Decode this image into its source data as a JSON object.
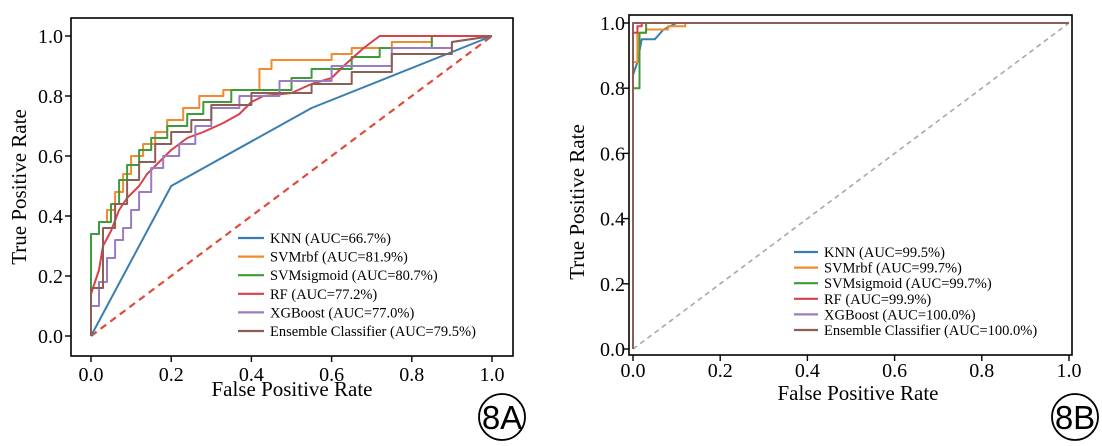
{
  "colors": {
    "knn": "#3a7eb0",
    "svmrbf": "#f28a2e",
    "svmsigmoid": "#3f9a3a",
    "rf": "#d8404a",
    "xgboost": "#9a7cc0",
    "ensemble": "#8c5e56",
    "diag_a": "#e04a3a",
    "diag_b": "#a8a8a8"
  },
  "chart_data": [
    {
      "type": "line",
      "badge": "8A",
      "xlabel": "False Positive Rate",
      "ylabel": "True Positive Rate",
      "xlim": [
        0,
        1
      ],
      "ylim": [
        0,
        1
      ],
      "xticks": [
        "0.0",
        "0.2",
        "0.4",
        "0.6",
        "0.8",
        "1.0"
      ],
      "yticks": [
        "0.0",
        "0.2",
        "0.4",
        "0.6",
        "0.8",
        "1.0"
      ],
      "grid": false,
      "legend_position": "bottom-right",
      "diagonal": "red-dashed",
      "series": [
        {
          "name": "KNN (AUC=66.7%)",
          "key": "knn",
          "x": [
            0,
            0.2,
            0.55,
            1.0
          ],
          "y": [
            0,
            0.5,
            0.76,
            1.0
          ]
        },
        {
          "name": "SVMrbf (AUC=81.9%)",
          "key": "svmrbf",
          "x": [
            0,
            0,
            0.02,
            0.02,
            0.04,
            0.04,
            0.06,
            0.06,
            0.08,
            0.08,
            0.1,
            0.1,
            0.13,
            0.13,
            0.16,
            0.16,
            0.19,
            0.19,
            0.23,
            0.23,
            0.27,
            0.27,
            0.33,
            0.33,
            0.42,
            0.42,
            0.45,
            0.45,
            0.6,
            0.6,
            0.65,
            0.65,
            0.75,
            0.75,
            0.85,
            0.85,
            1.0
          ],
          "y": [
            0,
            0.34,
            0.34,
            0.38,
            0.38,
            0.42,
            0.42,
            0.48,
            0.48,
            0.54,
            0.54,
            0.6,
            0.6,
            0.64,
            0.64,
            0.68,
            0.68,
            0.72,
            0.72,
            0.76,
            0.76,
            0.8,
            0.8,
            0.82,
            0.82,
            0.89,
            0.89,
            0.92,
            0.92,
            0.94,
            0.94,
            0.96,
            0.96,
            0.98,
            0.98,
            1.0,
            1.0
          ]
        },
        {
          "name": "SVMsigmoid (AUC=80.7%)",
          "key": "svmsigmoid",
          "x": [
            0,
            0,
            0.02,
            0.02,
            0.05,
            0.05,
            0.07,
            0.07,
            0.09,
            0.09,
            0.12,
            0.12,
            0.15,
            0.15,
            0.19,
            0.19,
            0.24,
            0.24,
            0.28,
            0.28,
            0.35,
            0.35,
            0.5,
            0.5,
            0.55,
            0.55,
            0.65,
            0.65,
            0.72,
            0.72,
            0.85,
            0.85,
            1.0
          ],
          "y": [
            0,
            0.34,
            0.34,
            0.38,
            0.38,
            0.44,
            0.44,
            0.52,
            0.52,
            0.57,
            0.57,
            0.62,
            0.62,
            0.66,
            0.66,
            0.7,
            0.7,
            0.74,
            0.74,
            0.78,
            0.78,
            0.82,
            0.82,
            0.86,
            0.86,
            0.89,
            0.89,
            0.93,
            0.93,
            0.96,
            0.96,
            1.0,
            1.0
          ]
        },
        {
          "name": "RF (AUC=77.2%)",
          "key": "rf",
          "x": [
            0,
            0,
            0.02,
            0.03,
            0.05,
            0.07,
            0.09,
            0.12,
            0.14,
            0.17,
            0.2,
            0.24,
            0.28,
            0.33,
            0.37,
            0.4,
            0.43,
            0.5,
            0.55,
            0.6,
            0.63,
            0.68,
            0.72,
            0.8,
            0.9,
            1.0
          ],
          "y": [
            0,
            0.14,
            0.22,
            0.3,
            0.35,
            0.42,
            0.46,
            0.5,
            0.54,
            0.58,
            0.62,
            0.66,
            0.68,
            0.71,
            0.74,
            0.78,
            0.8,
            0.81,
            0.84,
            0.86,
            0.9,
            0.96,
            1.0,
            1.0,
            1.0,
            1.0
          ]
        },
        {
          "name": "XGBoost (AUC=77.0%)",
          "key": "xgboost",
          "x": [
            0,
            0,
            0.02,
            0.02,
            0.04,
            0.04,
            0.06,
            0.06,
            0.08,
            0.08,
            0.1,
            0.1,
            0.12,
            0.12,
            0.15,
            0.15,
            0.18,
            0.18,
            0.22,
            0.22,
            0.26,
            0.26,
            0.3,
            0.3,
            0.37,
            0.37,
            0.47,
            0.47,
            0.6,
            0.6,
            0.75,
            0.75,
            0.9,
            0.9,
            1.0
          ],
          "y": [
            0,
            0.1,
            0.1,
            0.18,
            0.18,
            0.26,
            0.26,
            0.32,
            0.32,
            0.36,
            0.36,
            0.42,
            0.42,
            0.48,
            0.48,
            0.56,
            0.56,
            0.6,
            0.6,
            0.64,
            0.64,
            0.7,
            0.7,
            0.76,
            0.76,
            0.8,
            0.8,
            0.85,
            0.85,
            0.9,
            0.9,
            0.96,
            0.96,
            0.98,
            1.0
          ]
        },
        {
          "name": "Ensemble Classifier (AUC=79.5%)",
          "key": "ensemble",
          "x": [
            0,
            0,
            0.03,
            0.03,
            0.06,
            0.06,
            0.09,
            0.09,
            0.12,
            0.12,
            0.16,
            0.16,
            0.2,
            0.2,
            0.25,
            0.25,
            0.3,
            0.3,
            0.4,
            0.4,
            0.55,
            0.55,
            0.65,
            0.65,
            0.75,
            0.75,
            0.9,
            0.9,
            1.0
          ],
          "y": [
            0,
            0.16,
            0.16,
            0.36,
            0.36,
            0.44,
            0.44,
            0.52,
            0.52,
            0.58,
            0.58,
            0.64,
            0.64,
            0.68,
            0.68,
            0.72,
            0.72,
            0.77,
            0.77,
            0.81,
            0.81,
            0.84,
            0.84,
            0.88,
            0.88,
            0.94,
            0.94,
            0.98,
            1.0
          ]
        }
      ]
    },
    {
      "type": "line",
      "badge": "8B",
      "xlabel": "False Positive Rate",
      "ylabel": "True Positive Rate",
      "xlim": [
        0,
        1
      ],
      "ylim": [
        0,
        1
      ],
      "xticks": [
        "0.0",
        "0.2",
        "0.4",
        "0.6",
        "0.8",
        "1.0"
      ],
      "yticks": [
        "0.0",
        "0.2",
        "0.4",
        "0.6",
        "0.8",
        "1.0"
      ],
      "grid": false,
      "legend_position": "bottom-right",
      "diagonal": "gray-dashed",
      "series": [
        {
          "name": "KNN (AUC=99.5%)",
          "key": "knn",
          "x": [
            0,
            0,
            0.01,
            0.02,
            0.05,
            0.07,
            0.1,
            1.0
          ],
          "y": [
            0,
            0.84,
            0.88,
            0.95,
            0.95,
            0.98,
            1.0,
            1.0
          ]
        },
        {
          "name": "SVMrbf (AUC=99.7%)",
          "key": "svmrbf",
          "x": [
            0,
            0,
            0.01,
            0.01,
            0.03,
            0.03,
            0.08,
            0.08,
            0.12,
            0.12,
            1.0
          ],
          "y": [
            0,
            0.88,
            0.88,
            0.97,
            0.97,
            0.98,
            0.98,
            0.99,
            0.99,
            1.0,
            1.0
          ]
        },
        {
          "name": "SVMsigmoid (AUC=99.7%)",
          "key": "svmsigmoid",
          "x": [
            0,
            0,
            0.005,
            0.005,
            0.015,
            0.015,
            0.03,
            0.03,
            1.0
          ],
          "y": [
            0,
            0.8,
            0.8,
            0.8,
            0.8,
            0.97,
            0.97,
            1.0,
            1.0
          ]
        },
        {
          "name": "RF (AUC=99.9%)",
          "key": "rf",
          "x": [
            0,
            0,
            0.01,
            0.01,
            0.02,
            0.02,
            1.0
          ],
          "y": [
            0,
            0.97,
            0.97,
            0.99,
            0.99,
            1.0,
            1.0
          ]
        },
        {
          "name": "XGBoost (AUC=100.0%)",
          "key": "xgboost",
          "x": [
            0,
            0,
            1.0
          ],
          "y": [
            0,
            1.0,
            1.0
          ]
        },
        {
          "name": "Ensemble Classifier (AUC=100.0%)",
          "key": "ensemble",
          "x": [
            0,
            0,
            1.0
          ],
          "y": [
            0,
            1.0,
            1.0
          ]
        }
      ]
    }
  ]
}
